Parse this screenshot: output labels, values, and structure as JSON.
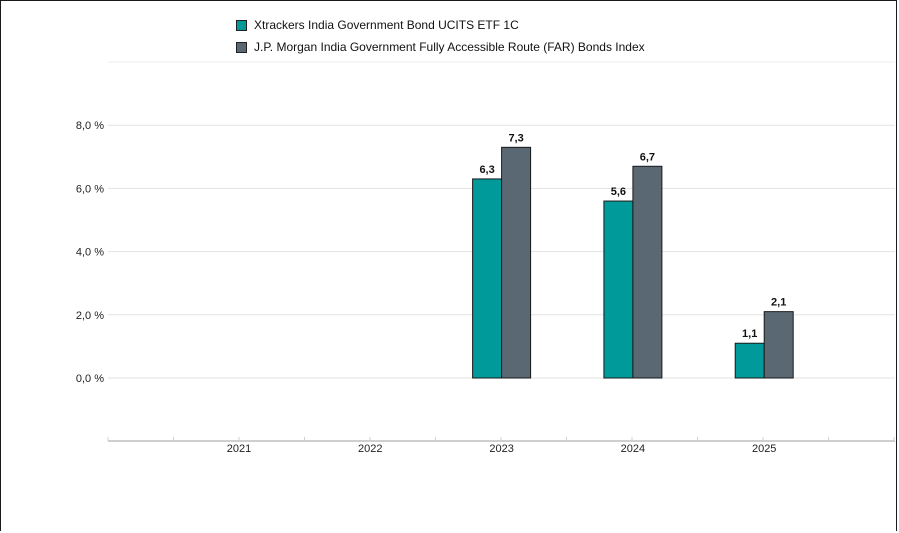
{
  "chart_data": {
    "type": "bar",
    "categories": [
      "2021",
      "2022",
      "2023",
      "2024",
      "2025"
    ],
    "series": [
      {
        "name": "Xtrackers India Government Bond UCITS ETF 1C",
        "color": "#009a9a",
        "values": [
          null,
          null,
          6.3,
          5.6,
          1.1
        ],
        "labels": [
          "",
          "",
          "6,3",
          "5,6",
          "1,1"
        ]
      },
      {
        "name": "J.P. Morgan India Government Fully Accessible Route (FAR) Bonds Index",
        "color": "#5a6873",
        "values": [
          null,
          null,
          7.3,
          6.7,
          2.1
        ],
        "labels": [
          "",
          "",
          "7,3",
          "6,7",
          "2,1"
        ]
      }
    ],
    "yticks": [
      0,
      2,
      4,
      6,
      8
    ],
    "ytick_labels": [
      "0,0 %",
      "2,0 %",
      "4,0 %",
      "6,0 %",
      "8,0 %"
    ],
    "ylim": [
      -2,
      10
    ],
    "grid": true,
    "legend_position": "top"
  }
}
